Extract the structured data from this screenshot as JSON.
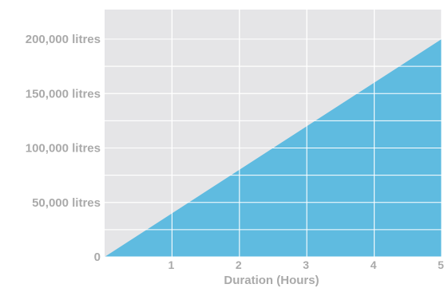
{
  "chart_data": {
    "type": "area",
    "title": "",
    "xlabel": "Duration (Hours)",
    "ylabel": "",
    "x": [
      0,
      5
    ],
    "series": [
      {
        "values": [
          0,
          200000
        ]
      }
    ],
    "xlim": [
      0,
      5
    ],
    "ylim": [
      0,
      200000
    ],
    "x_ticks": [
      {
        "value": 1,
        "label": "1"
      },
      {
        "value": 2,
        "label": "2"
      },
      {
        "value": 3,
        "label": "3"
      },
      {
        "value": 4,
        "label": "4"
      },
      {
        "value": 5,
        "label": "5"
      }
    ],
    "y_ticks": [
      {
        "value": 0,
        "label": "0"
      },
      {
        "value": 50000,
        "label": "50,000 litres"
      },
      {
        "value": 100000,
        "label": "100,000 litres"
      },
      {
        "value": 150000,
        "label": "150,000 litres"
      },
      {
        "value": 200000,
        "label": "200,000 litres"
      }
    ],
    "grid": true,
    "legend": "none",
    "colors": {
      "area": "#5fbbe0",
      "background": "#e5e5e7",
      "grid": "#ffffff",
      "text": "#aaaaaa"
    }
  }
}
